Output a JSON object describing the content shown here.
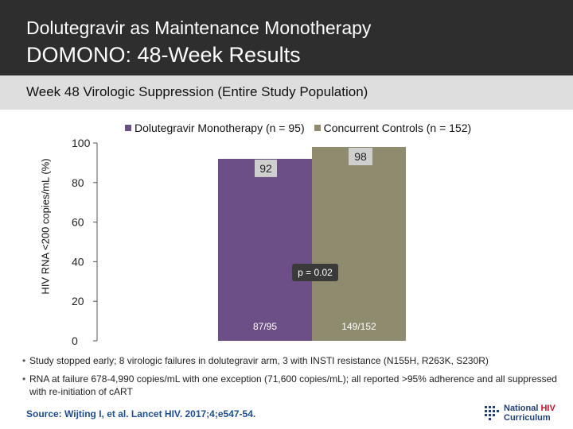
{
  "header": {
    "title": "Dolutegravir as Maintenance Monotherapy",
    "subtitle": "DOMONO: 48-Week Results"
  },
  "subheader": "Week 48 Virologic Suppression (Entire Study Population)",
  "chart_data": {
    "type": "bar",
    "title": "",
    "xlabel": "",
    "ylabel": "HIV RNA <200 copies/mL (%)",
    "ylim": [
      0,
      100
    ],
    "yticks": [
      0,
      20,
      40,
      60,
      80,
      100
    ],
    "grid": false,
    "legend_position": "top",
    "series": [
      {
        "name": "Dolutegravir Monotherapy (n = 95)",
        "value": 92,
        "value_label": "92",
        "fraction_label": "87/95",
        "color": "#6b4f86"
      },
      {
        "name": "Concurrent Controls (n = 152)",
        "value": 98,
        "value_label": "98",
        "fraction_label": "149/152",
        "color": "#8e8b6f"
      }
    ],
    "annotation": "p = 0.02"
  },
  "bullets": [
    "Study stopped early; 8 virologic failures in dolutegravir arm, 3 with INSTI resistance (N155H, R263K, S230R)",
    "RNA at failure 678-4,990 copies/mL with one exception (71,600 copies/mL); all reported >95% adherence and all suppressed with re-initiation of cART"
  ],
  "source": "Source: Wijting I, et al. Lancet HIV. 2017;4;e547-54.",
  "logo": {
    "line1": "National",
    "line1_accent": "HIV",
    "line2": "Curriculum"
  },
  "colors": {
    "header_bg": "#2e2e2e",
    "subheader_bg": "#dedede",
    "source_text": "#1f4e8c",
    "logo_blue": "#1f3f75",
    "logo_red": "#c8102e"
  }
}
